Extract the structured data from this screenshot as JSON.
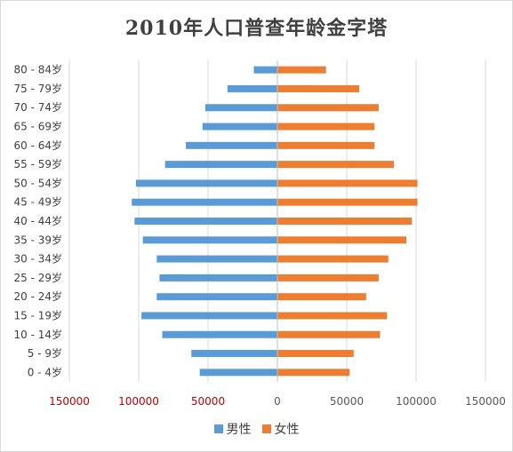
{
  "chart_data": {
    "type": "bar",
    "orientation": "horizontal",
    "title": "2010年人口普查年龄金字塔",
    "xlabel": "",
    "ylabel": "",
    "categories": [
      "0 - 4岁",
      "5 - 9岁",
      "10 - 14岁",
      "15 - 19岁",
      "20 - 24岁",
      "25 - 29岁",
      "30 - 34岁",
      "35 - 39岁",
      "40 - 44岁",
      "45 - 49岁",
      "50 - 54岁",
      "55 - 59岁",
      "60 - 64岁",
      "65 - 69岁",
      "70 - 74岁",
      "75 - 79岁",
      "80 - 84岁"
    ],
    "series": [
      {
        "name": "男性",
        "color": "#5b9bd5",
        "values": [
          -56000,
          -62000,
          -83000,
          -98000,
          -87000,
          -85000,
          -87000,
          -97000,
          -103000,
          -105000,
          -102000,
          -81000,
          -66000,
          -54000,
          -52000,
          -36000,
          -17000
        ]
      },
      {
        "name": "女性",
        "color": "#ed7d31",
        "values": [
          52000,
          55000,
          74000,
          79000,
          64000,
          73000,
          80000,
          93000,
          97000,
          101000,
          101000,
          84000,
          70000,
          70000,
          73000,
          59000,
          35000
        ]
      }
    ],
    "xlim": [
      -150000,
      150000
    ],
    "xticks": [
      -150000,
      -100000,
      -50000,
      0,
      50000,
      100000,
      150000
    ],
    "xtick_labels": [
      "150000",
      "100000",
      "50000",
      "0",
      "50000",
      "100000",
      "150000"
    ],
    "negative_tick_color": "#c00000",
    "grid": "vertical",
    "legend": "bottom"
  }
}
